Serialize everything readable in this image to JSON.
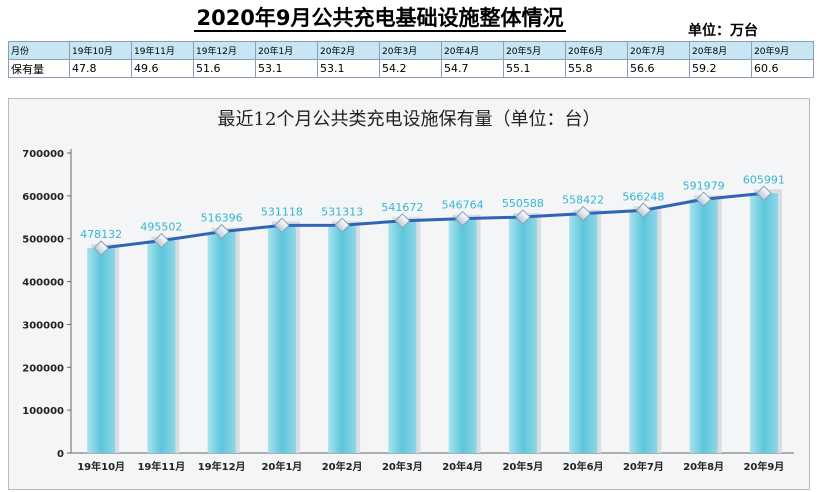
{
  "page": {
    "title": "2020年9月公共充电基础设施整体情况",
    "unit": "单位：万台"
  },
  "summary_table": {
    "header_label": "月份",
    "row_label": "保有量",
    "months": [
      "19年10月",
      "19年11月",
      "19年12月",
      "20年1月",
      "20年2月",
      "20年3月",
      "20年4月",
      "20年5月",
      "20年6月",
      "20年7月",
      "20年8月",
      "20年9月"
    ],
    "values": [
      "47.8",
      "49.6",
      "51.6",
      "53.1",
      "53.1",
      "54.2",
      "54.7",
      "55.1",
      "55.8",
      "56.6",
      "59.2",
      "60.6"
    ]
  },
  "chart_data": {
    "type": "bar",
    "title": "最近12个月公共类充电设施保有量（单位：台）",
    "categories": [
      "19年10月",
      "19年11月",
      "19年12月",
      "20年1月",
      "20年2月",
      "20年3月",
      "20年4月",
      "20年5月",
      "20年6月",
      "20年7月",
      "20年8月",
      "20年9月"
    ],
    "values": [
      478132,
      495502,
      516396,
      531118,
      531313,
      541672,
      546764,
      550588,
      558422,
      566248,
      591979,
      605991
    ],
    "overlay_line": true,
    "ylim": [
      0,
      700000
    ],
    "yticks": [
      0,
      100000,
      200000,
      300000,
      400000,
      500000,
      600000,
      700000
    ],
    "xlabel": "",
    "ylabel": "",
    "grid": false,
    "colors": {
      "bar": "#5cc6dc",
      "line": "#2f66b4",
      "label": "#39b6d3"
    }
  }
}
